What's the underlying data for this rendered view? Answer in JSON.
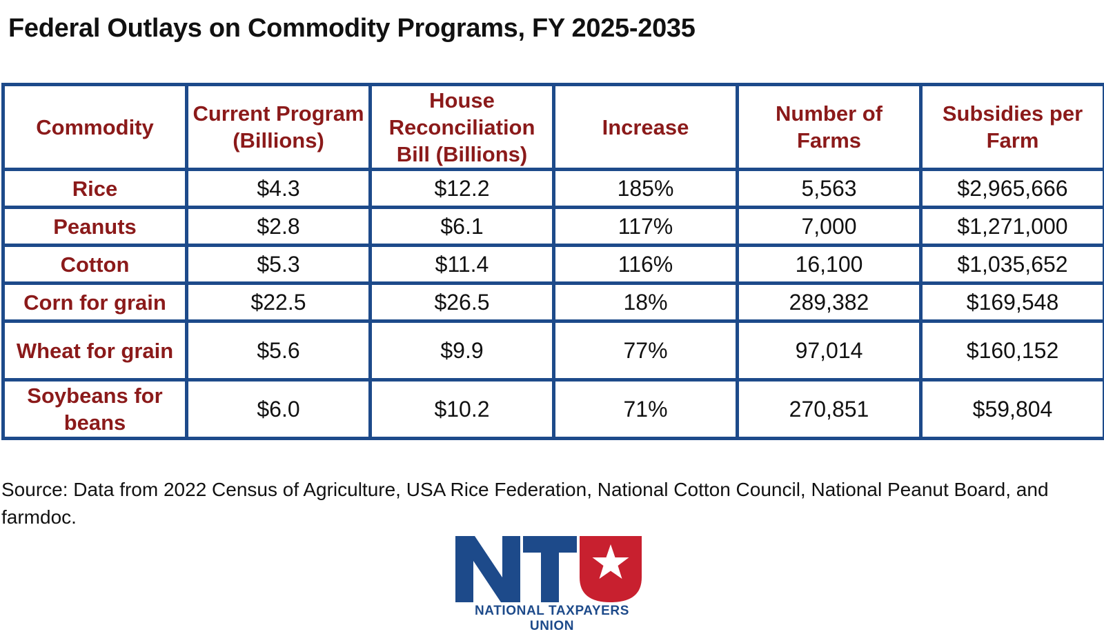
{
  "title": "Federal Outlays on Commodity Programs, FY 2025-2035",
  "source": "Source: Data from 2022 Census of Agriculture, USA Rice Federation, National Cotton Council, National Peanut Board, and farmdoc.",
  "logo": {
    "letters": "NTU",
    "name": "NATIONAL TAXPAYERS UNION"
  },
  "colors": {
    "border": "#1d4a8a",
    "header_text": "#8b1a1a",
    "logo_blue": "#1d4a8a",
    "logo_red": "#c8202f"
  },
  "chart_data": {
    "type": "table",
    "title": "Federal Outlays on Commodity Programs, FY 2025-2035",
    "columns": [
      "Commodity",
      "Current Program (Billions)",
      "House Reconciliation Bill (Billions)",
      "Increase",
      "Number of Farms",
      "Subsidies per Farm"
    ],
    "rows": [
      [
        "Rice",
        "$4.3",
        "$12.2",
        "185%",
        "5,563",
        "$2,965,666"
      ],
      [
        "Peanuts",
        "$2.8",
        "$6.1",
        "117%",
        "7,000",
        "$1,271,000"
      ],
      [
        "Cotton",
        "$5.3",
        "$11.4",
        "116%",
        "16,100",
        "$1,035,652"
      ],
      [
        "Corn for grain",
        "$22.5",
        "$26.5",
        "18%",
        "289,382",
        "$169,548"
      ],
      [
        "Wheat for grain",
        "$5.6",
        "$9.9",
        "77%",
        "97,014",
        "$160,152"
      ],
      [
        "Soybeans for beans",
        "$6.0",
        "$10.2",
        "71%",
        "270,851",
        "$59,804"
      ]
    ]
  }
}
